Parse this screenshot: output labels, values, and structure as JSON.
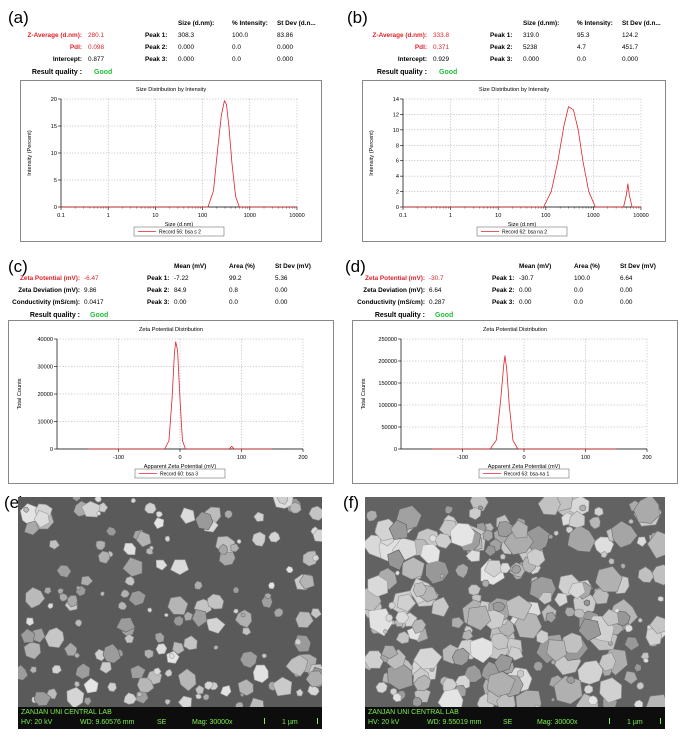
{
  "panels": {
    "a": {
      "label": "(a)",
      "table": {
        "left": [
          {
            "name": "Z-Average (d.nm):",
            "value": "280.1",
            "red": true
          },
          {
            "name": "PdI:",
            "value": "0.098",
            "red": true
          },
          {
            "name": "Intercept:",
            "value": "0.877",
            "red": false
          },
          {
            "name": "Result quality :",
            "value": "Good",
            "red": false
          }
        ],
        "headers": [
          "Size (d.nm):",
          "% Intensity:",
          "St Dev (d.n..."
        ],
        "peaks": [
          {
            "name": "Peak 1:",
            "v": [
              "308.3",
              "100.0",
              "83.86"
            ]
          },
          {
            "name": "Peak 2:",
            "v": [
              "0.000",
              "0.0",
              "0.000"
            ]
          },
          {
            "name": "Peak 3:",
            "v": [
              "0.000",
              "0.0",
              "0.000"
            ]
          }
        ]
      }
    },
    "b": {
      "label": "(b)",
      "table": {
        "left": [
          {
            "name": "Z-Average (d.nm):",
            "value": "333.8",
            "red": true
          },
          {
            "name": "PdI:",
            "value": "0.371",
            "red": true
          },
          {
            "name": "Intercept:",
            "value": "0.929",
            "red": false
          },
          {
            "name": "Result quality :",
            "value": "Good",
            "red": false
          }
        ],
        "headers": [
          "Size (d.nm):",
          "% Intensity:",
          "St Dev (d.n..."
        ],
        "peaks": [
          {
            "name": "Peak 1:",
            "v": [
              "319.0",
              "95.3",
              "124.2"
            ]
          },
          {
            "name": "Peak 2:",
            "v": [
              "5238",
              "4.7",
              "451.7"
            ]
          },
          {
            "name": "Peak 3:",
            "v": [
              "0.000",
              "0.0",
              "0.000"
            ]
          }
        ]
      }
    },
    "c": {
      "label": "(c)",
      "table": {
        "left": [
          {
            "name": "Zeta Potential (mV):",
            "value": "-6.47",
            "red": true
          },
          {
            "name": "Zeta Deviation (mV):",
            "value": "9.86",
            "red": false
          },
          {
            "name": "Conductivity (mS/cm):",
            "value": "0.0417",
            "red": false
          },
          {
            "name": "Result quality :",
            "value": "Good",
            "red": false
          }
        ],
        "headers": [
          "Mean (mV)",
          "Area (%)",
          "St Dev (mV)"
        ],
        "peaks": [
          {
            "name": "Peak 1:",
            "v": [
              "-7.22",
              "99.2",
              "5.36"
            ]
          },
          {
            "name": "Peak 2:",
            "v": [
              "84.9",
              "0.8",
              "0.00"
            ]
          },
          {
            "name": "Peak 3:",
            "v": [
              "0.00",
              "0.0",
              "0.00"
            ]
          }
        ]
      }
    },
    "d": {
      "label": "(d)",
      "table": {
        "left": [
          {
            "name": "Zeta Potential (mV):",
            "value": "-30.7",
            "red": true
          },
          {
            "name": "Zeta Deviation (mV):",
            "value": "6.64",
            "red": false
          },
          {
            "name": "Conductivity (mS/cm):",
            "value": "0.287",
            "red": false
          },
          {
            "name": "Result quality :",
            "value": "Good",
            "red": false
          }
        ],
        "headers": [
          "Mean (mV)",
          "Area (%)",
          "St Dev (mV)"
        ],
        "peaks": [
          {
            "name": "Peak 1:",
            "v": [
              "-30.7",
              "100.0",
              "6.64"
            ]
          },
          {
            "name": "Peak 2:",
            "v": [
              "0.00",
              "0.0",
              "0.00"
            ]
          },
          {
            "name": "Peak 3:",
            "v": [
              "0.00",
              "0.0",
              "0.00"
            ]
          }
        ]
      }
    },
    "e": {
      "label": "(e)",
      "sem": {
        "lab": "ZANJAN UNI CENTRAL LAB",
        "hv": "HV: 20 kV",
        "wd": "WD: 9.60576 mm",
        "se": "SE",
        "mag": "Mag: 30000x",
        "scale": "1 µm"
      }
    },
    "f": {
      "label": "(f)",
      "sem": {
        "lab": "ZANJAN UNI CENTRAL LAB",
        "hv": "HV: 20 kV",
        "wd": "WD: 9.55019 mm",
        "se": "SE",
        "mag": "Mag: 30000x",
        "scale": "1 µm"
      }
    }
  },
  "chart_data": [
    {
      "id": "a",
      "type": "line",
      "title": "Size Distribution by Intensity",
      "xlabel": "Size (d.nm)",
      "ylabel": "Intensity (Percent)",
      "xscale": "log",
      "xlim": [
        0.1,
        10000
      ],
      "ylim": [
        0,
        20
      ],
      "xticks": [
        "0.1",
        "1",
        "10",
        "100",
        "1000",
        "10000"
      ],
      "yticks": [
        "0",
        "5",
        "10",
        "15",
        "20"
      ],
      "grid": true,
      "legend": "Record 56: bsa s 2",
      "color": "#e0232a",
      "series": [
        {
          "x": [
            0.1,
            130,
            170,
            210,
            250,
            290,
            320,
            360,
            420,
            500,
            600,
            10000
          ],
          "y": [
            0,
            0,
            3,
            11,
            17,
            19.7,
            19,
            15,
            8,
            2,
            0,
            0
          ]
        }
      ]
    },
    {
      "id": "b",
      "type": "line",
      "title": "Size Distribution by Intensity",
      "xlabel": "Size (d.nm)",
      "ylabel": "Intensity (Percent)",
      "xscale": "log",
      "xlim": [
        0.1,
        10000
      ],
      "ylim": [
        0,
        14
      ],
      "xticks": [
        "0.1",
        "1",
        "10",
        "100",
        "1000",
        "10000"
      ],
      "yticks": [
        "0",
        "2",
        "4",
        "6",
        "8",
        "10",
        "12",
        "14"
      ],
      "grid": true,
      "legend": "Record 62: bsa na 2",
      "color": "#e0232a",
      "series": [
        {
          "x": [
            0.1,
            90,
            130,
            180,
            240,
            300,
            380,
            480,
            600,
            800,
            1100,
            4300,
            4900,
            5300,
            5700,
            6500,
            10000
          ],
          "y": [
            0,
            0,
            2,
            6,
            10.5,
            13,
            12.6,
            10,
            6,
            2,
            0,
            0,
            1.5,
            3,
            1.5,
            0,
            0
          ]
        }
      ]
    },
    {
      "id": "c",
      "type": "line",
      "title": "Zeta Potential Distribution",
      "xlabel": "Apparent Zeta Potential (mV)",
      "ylabel": "Total Counts",
      "xlim": [
        -200,
        200
      ],
      "ylim": [
        0,
        40000
      ],
      "xticks": [
        "-100",
        "0",
        "100",
        "200"
      ],
      "yticks": [
        "0",
        "10000",
        "20000",
        "30000",
        "40000"
      ],
      "grid": true,
      "legend": "Record 60: bsa 3",
      "color": "#e0232a",
      "series": [
        {
          "x": [
            -150,
            -25,
            -18,
            -13,
            -9,
            -7,
            -4,
            0,
            4,
            9,
            80,
            84,
            88,
            150
          ],
          "y": [
            0,
            0,
            3000,
            18000,
            35000,
            39000,
            36000,
            18000,
            3000,
            0,
            0,
            1000,
            0,
            0
          ]
        }
      ]
    },
    {
      "id": "d",
      "type": "line",
      "title": "Zeta Potential Distribution",
      "xlabel": "Apparent Zeta Potential (mV)",
      "ylabel": "Total Counts",
      "xlim": [
        -200,
        200
      ],
      "ylim": [
        0,
        250000
      ],
      "xticks": [
        "-100",
        "0",
        "100",
        "200"
      ],
      "yticks": [
        "0",
        "50000",
        "100000",
        "150000",
        "200000",
        "250000"
      ],
      "grid": true,
      "legend": "Record 63: bsa-na 1",
      "color": "#e0232a",
      "series": [
        {
          "x": [
            -150,
            -55,
            -45,
            -38,
            -33,
            -31,
            -28,
            -24,
            -18,
            -10,
            150
          ],
          "y": [
            0,
            0,
            20000,
            110000,
            190000,
            212000,
            180000,
            100000,
            20000,
            0,
            0
          ]
        }
      ]
    }
  ]
}
